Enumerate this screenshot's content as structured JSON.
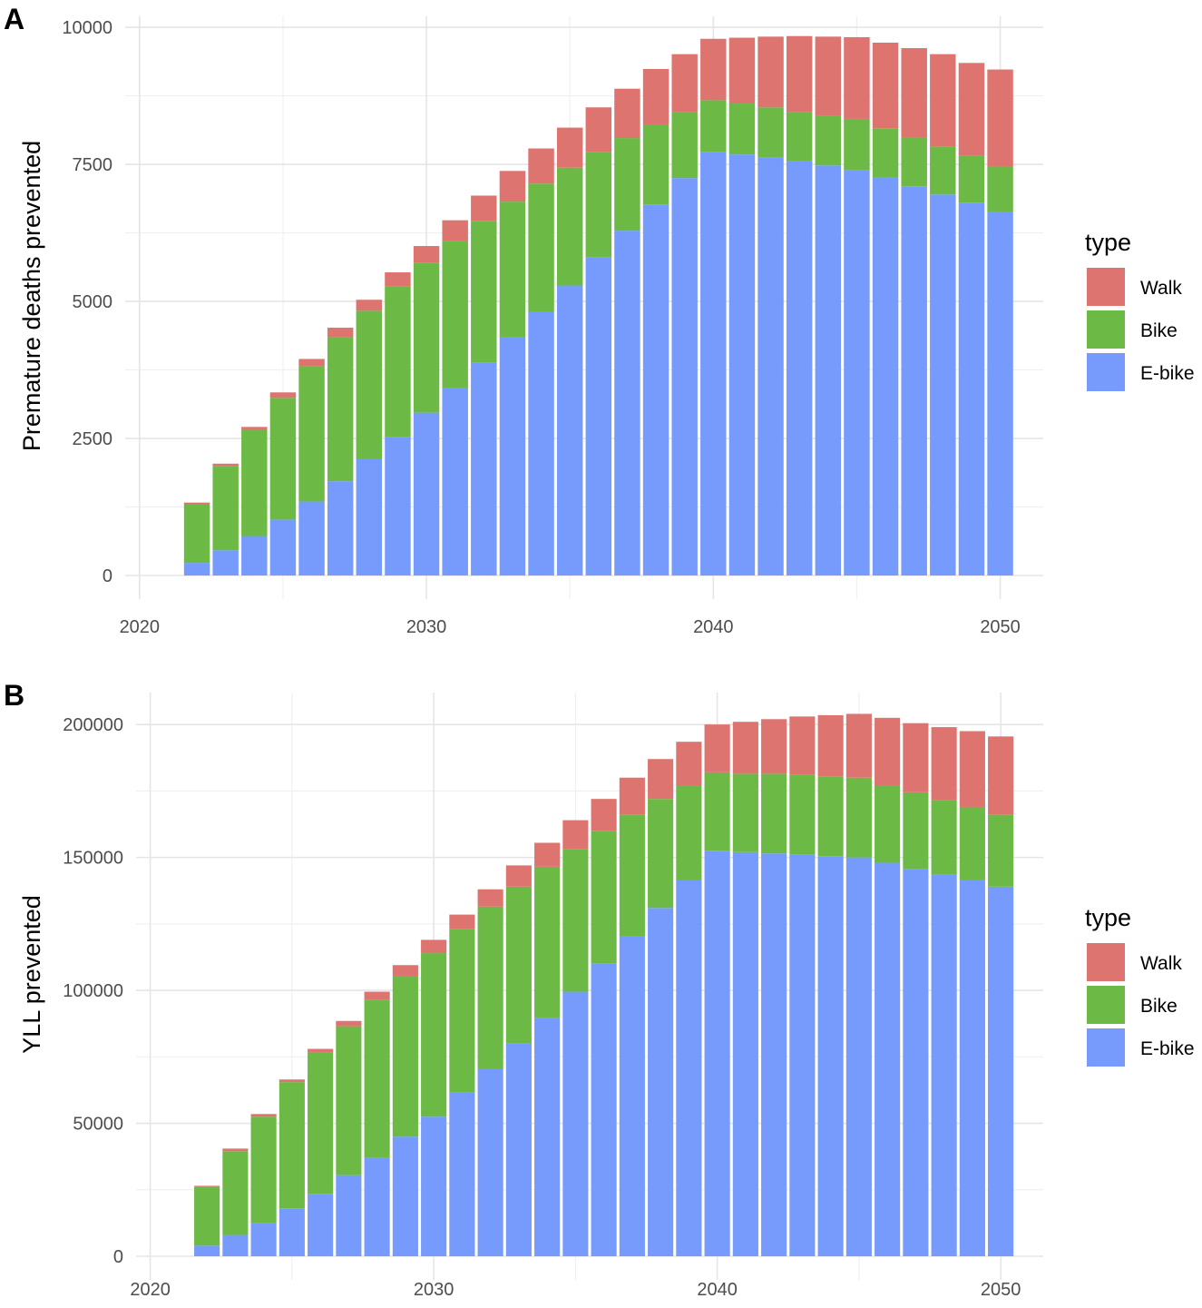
{
  "colors": {
    "Walk": "#DD7470",
    "Bike": "#6CBA45",
    "E-bike": "#779BFC",
    "grid": "#e5e5e5"
  },
  "chart_data": [
    {
      "type": "bar",
      "stacked": true,
      "tag": "A",
      "title": "",
      "xlabel": "",
      "ylabel": "Premature deaths prevented",
      "xlim": [
        2019.5,
        2051.5
      ],
      "ylim": [
        0,
        10200
      ],
      "xticks": [
        2020,
        2030,
        2040,
        2050
      ],
      "yticks": [
        0,
        2500,
        5000,
        7500,
        10000
      ],
      "grid": true,
      "legend": {
        "title": "type",
        "position": "right",
        "entries": [
          "Walk",
          "Bike",
          "E-bike"
        ]
      },
      "x": [
        2022,
        2023,
        2024,
        2025,
        2026,
        2027,
        2028,
        2029,
        2030,
        2031,
        2032,
        2033,
        2034,
        2035,
        2036,
        2037,
        2038,
        2039,
        2040,
        2041,
        2042,
        2043,
        2044,
        2045,
        2046,
        2047,
        2048,
        2049,
        2050
      ],
      "series": [
        {
          "name": "E-bike",
          "values": [
            230,
            460,
            720,
            1020,
            1350,
            1720,
            2120,
            2520,
            2970,
            3420,
            3880,
            4340,
            4810,
            5290,
            5800,
            6290,
            6770,
            7250,
            7720,
            7680,
            7620,
            7560,
            7480,
            7390,
            7260,
            7100,
            6950,
            6800,
            6640
          ]
        },
        {
          "name": "Bike",
          "values": [
            1070,
            1530,
            1930,
            2220,
            2460,
            2620,
            2710,
            2760,
            2740,
            2680,
            2590,
            2480,
            2340,
            2150,
            1920,
            1690,
            1460,
            1210,
            950,
            930,
            920,
            900,
            900,
            940,
            900,
            890,
            880,
            860,
            820
          ]
        },
        {
          "name": "Walk",
          "values": [
            30,
            50,
            60,
            100,
            140,
            180,
            200,
            250,
            300,
            380,
            460,
            560,
            640,
            730,
            820,
            900,
            1010,
            1050,
            1120,
            1200,
            1290,
            1380,
            1450,
            1490,
            1560,
            1630,
            1680,
            1690,
            1770
          ]
        }
      ]
    },
    {
      "type": "bar",
      "stacked": true,
      "tag": "B",
      "title": "",
      "xlabel": "",
      "ylabel": "YLL prevented",
      "xlim": [
        2019.5,
        2051.5
      ],
      "ylim": [
        0,
        212000
      ],
      "xticks": [
        2020,
        2030,
        2040,
        2050
      ],
      "yticks": [
        0,
        50000,
        100000,
        150000,
        200000
      ],
      "grid": true,
      "legend": {
        "title": "type",
        "position": "right",
        "entries": [
          "Walk",
          "Bike",
          "E-bike"
        ]
      },
      "x": [
        2022,
        2023,
        2024,
        2025,
        2026,
        2027,
        2028,
        2029,
        2030,
        2031,
        2032,
        2033,
        2034,
        2035,
        2036,
        2037,
        2038,
        2039,
        2040,
        2041,
        2042,
        2043,
        2044,
        2045,
        2046,
        2047,
        2048,
        2049,
        2050
      ],
      "series": [
        {
          "name": "E-bike",
          "values": [
            4000,
            8000,
            12500,
            18000,
            23500,
            30500,
            37000,
            45000,
            52500,
            61500,
            70500,
            80000,
            89500,
            99500,
            110000,
            120500,
            131000,
            141500,
            152500,
            152000,
            151500,
            151000,
            150500,
            150000,
            148000,
            145500,
            143500,
            141500,
            139000
          ]
        },
        {
          "name": "Bike",
          "values": [
            22000,
            31500,
            40000,
            47500,
            53000,
            56000,
            59500,
            60500,
            61500,
            61500,
            61000,
            59000,
            57000,
            53500,
            50000,
            45500,
            41000,
            35500,
            29500,
            29500,
            30000,
            30000,
            30000,
            30000,
            29000,
            29000,
            28000,
            27500,
            27000
          ]
        },
        {
          "name": "Walk",
          "values": [
            500,
            1000,
            1000,
            1000,
            1500,
            2000,
            3000,
            4000,
            5000,
            5500,
            6500,
            8000,
            9000,
            11000,
            12000,
            14000,
            15000,
            16500,
            18000,
            19500,
            20500,
            22000,
            23000,
            24000,
            25500,
            26000,
            27500,
            28500,
            29500
          ]
        }
      ]
    }
  ]
}
